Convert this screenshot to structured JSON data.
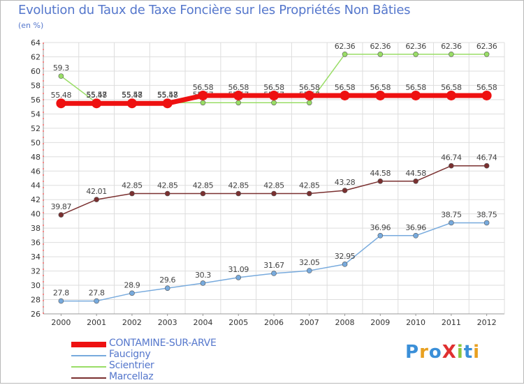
{
  "title": "Evolution du Taux de Taxe Foncière sur les Propriétés Non Bâties",
  "subtitle": "(en %)",
  "logo": {
    "text": "ProXiti",
    "colors": [
      "#3a8fd8",
      "#e8a020",
      "#3a8fd8",
      "#e03030",
      "#8cc63e",
      "#3a8fd8",
      "#e8a020"
    ]
  },
  "chart_data": {
    "type": "line",
    "title": "Evolution du Taux de Taxe Foncière sur les Propriétés Non Bâties",
    "ylabel": "(en %)",
    "xlabel": "",
    "categories": [
      "2000",
      "2001",
      "2002",
      "2003",
      "2004",
      "2005",
      "2006",
      "2007",
      "2008",
      "2009",
      "2010",
      "2011",
      "2012"
    ],
    "ylim": [
      26,
      64
    ],
    "yticks": [
      "26",
      "28",
      "30",
      "32",
      "34",
      "36",
      "38",
      "40",
      "42",
      "44",
      "46",
      "48",
      "50",
      "52",
      "54",
      "56",
      "58",
      "60",
      "62",
      "64"
    ],
    "grid": true,
    "legend_position": "bottom-left",
    "series": [
      {
        "name": "Scientrier",
        "color": "#99dd66",
        "values": [
          59.3,
          55.57,
          55.57,
          55.57,
          55.57,
          55.57,
          55.57,
          55.57,
          62.36,
          62.36,
          62.36,
          62.36,
          62.36
        ],
        "labels": [
          "59.3",
          "55.57",
          "55.57",
          "55.57",
          "55.57",
          "55.57",
          "55.57",
          "55.57",
          "62.36",
          "62.36",
          "62.36",
          "62.36",
          "62.36"
        ]
      },
      {
        "name": "Marcellaz",
        "color": "#7a3030",
        "values": [
          39.87,
          42.01,
          42.85,
          42.85,
          42.85,
          42.85,
          42.85,
          42.85,
          43.28,
          44.58,
          44.58,
          46.74,
          46.74
        ],
        "labels": [
          "39.87",
          "42.01",
          "42.85",
          "42.85",
          "42.85",
          "42.85",
          "42.85",
          "42.85",
          "43.28",
          "44.58",
          "44.58",
          "46.74",
          "46.74"
        ]
      },
      {
        "name": "Faucigny",
        "color": "#77aadd",
        "values": [
          27.8,
          27.8,
          28.9,
          29.6,
          30.3,
          31.09,
          31.67,
          32.05,
          32.95,
          36.96,
          36.96,
          38.75,
          38.75
        ],
        "labels": [
          "27.8",
          "27.8",
          "28.9",
          "29.6",
          "30.3",
          "31.09",
          "31.67",
          "32.05",
          "32.95",
          "36.96",
          "36.96",
          "38.75",
          "38.75"
        ]
      },
      {
        "name": "CONTAMINE-SUR-ARVE",
        "color": "#ee1111",
        "values": [
          55.48,
          55.48,
          55.48,
          55.48,
          56.58,
          56.58,
          56.58,
          56.58,
          56.58,
          56.58,
          56.58,
          56.58,
          56.58
        ],
        "labels": [
          "55.48",
          "55.48",
          "55.48",
          "55.48",
          "56.58",
          "56.58",
          "56.58",
          "56.58",
          "56.58",
          "56.58",
          "56.58",
          "56.58",
          "56.58"
        ]
      }
    ],
    "legend": [
      "CONTAMINE-SUR-ARVE",
      "Faucigny",
      "Scientrier",
      "Marcellaz"
    ]
  }
}
